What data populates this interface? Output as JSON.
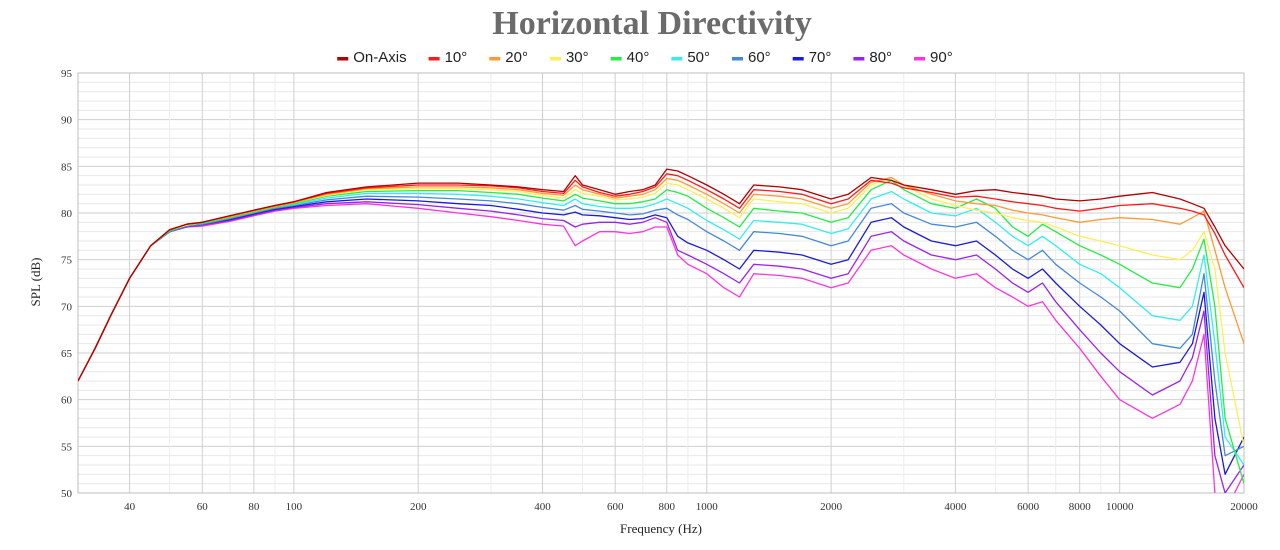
{
  "chart_data": {
    "type": "line",
    "title": "Horizontal Directivity",
    "xlabel": "Frequency (Hz)",
    "ylabel": "SPL (dB)",
    "x_scale": "log",
    "xlim": [
      30,
      20000
    ],
    "ylim": [
      50,
      95
    ],
    "x_ticks": [
      40,
      60,
      80,
      100,
      200,
      400,
      600,
      800,
      1000,
      2000,
      4000,
      6000,
      8000,
      10000,
      20000
    ],
    "y_ticks": [
      50,
      55,
      60,
      65,
      70,
      75,
      80,
      85,
      90,
      95
    ],
    "grid": true,
    "legend_position": "top-center",
    "x": [
      30,
      33,
      36,
      40,
      45,
      50,
      55,
      60,
      70,
      80,
      90,
      100,
      120,
      150,
      200,
      250,
      300,
      350,
      400,
      450,
      480,
      500,
      550,
      600,
      650,
      700,
      750,
      800,
      850,
      900,
      1000,
      1100,
      1200,
      1300,
      1500,
      1700,
      2000,
      2200,
      2500,
      2800,
      3000,
      3500,
      4000,
      4500,
      5000,
      5500,
      6000,
      6500,
      7000,
      8000,
      9000,
      10000,
      12000,
      14000,
      15000,
      16000,
      17000,
      18000,
      20000
    ],
    "series": [
      {
        "name": "On-Axis",
        "color": "#b00000",
        "values": [
          62,
          65.5,
          69,
          73,
          76.5,
          78.2,
          78.8,
          79,
          79.7,
          80.3,
          80.8,
          81.2,
          82.2,
          82.8,
          83.2,
          83.2,
          83,
          82.8,
          82.5,
          82.3,
          84,
          83,
          82.5,
          82,
          82.3,
          82.5,
          83,
          84.7,
          84.5,
          84,
          83,
          82,
          81,
          83,
          82.8,
          82.5,
          81.5,
          82,
          83.8,
          83.5,
          83,
          82.5,
          82,
          82.4,
          82.5,
          82.2,
          82,
          81.8,
          81.5,
          81.3,
          81.5,
          81.8,
          82.2,
          81.5,
          81,
          80.5,
          78.5,
          76.5,
          74
        ]
      },
      {
        "name": "10°",
        "color": "#ff1a1a",
        "values": [
          62,
          65.5,
          69,
          73,
          76.5,
          78.2,
          78.8,
          79,
          79.7,
          80.3,
          80.8,
          81.2,
          82.1,
          82.7,
          83,
          83,
          82.9,
          82.7,
          82.3,
          82.1,
          83.5,
          82.8,
          82.2,
          81.8,
          82,
          82.3,
          82.8,
          84.2,
          84,
          83.5,
          82.5,
          81.5,
          80.5,
          82.5,
          82.3,
          82,
          81,
          81.5,
          83.5,
          83.2,
          82.7,
          82.2,
          81.7,
          81.8,
          81.5,
          81.2,
          81,
          80.8,
          80.5,
          80.2,
          80.5,
          80.8,
          81,
          80.5,
          80.2,
          79.8,
          77.8,
          75.5,
          72
        ]
      },
      {
        "name": "20°",
        "color": "#ff9933",
        "values": [
          62,
          65.5,
          69,
          73,
          76.5,
          78.2,
          78.8,
          79,
          79.6,
          80.2,
          80.7,
          81.1,
          82,
          82.6,
          82.8,
          82.8,
          82.7,
          82.5,
          82.1,
          81.9,
          83,
          82.5,
          82,
          81.6,
          81.8,
          82,
          82.5,
          83.7,
          83.5,
          83,
          82,
          81,
          80,
          82,
          81.8,
          81.5,
          80.5,
          81,
          83.3,
          83.8,
          83,
          82,
          81.3,
          81,
          80.8,
          80.3,
          80,
          79.8,
          79.5,
          79,
          79.3,
          79.5,
          79.3,
          78.8,
          79.5,
          80.2,
          76,
          72,
          66
        ]
      },
      {
        "name": "30°",
        "color": "#ffee55",
        "values": [
          62,
          65.5,
          69,
          73,
          76.5,
          78.2,
          78.7,
          79,
          79.6,
          80.2,
          80.7,
          81.1,
          81.9,
          82.5,
          82.6,
          82.6,
          82.5,
          82.3,
          81.9,
          81.6,
          82.5,
          82.1,
          81.8,
          81.4,
          81.5,
          81.7,
          82.1,
          83.2,
          83,
          82.5,
          81.5,
          80.5,
          79.5,
          81.5,
          81.2,
          81,
          80,
          80.5,
          83,
          83.8,
          83,
          81.5,
          80.8,
          80.3,
          80,
          79.5,
          79.2,
          79,
          78.5,
          77.5,
          77,
          76.5,
          75.5,
          75,
          76,
          78,
          74,
          65,
          55
        ]
      },
      {
        "name": "40°",
        "color": "#22ee44",
        "values": [
          62,
          65.5,
          69,
          73,
          76.5,
          78.1,
          78.7,
          78.9,
          79.5,
          80.1,
          80.6,
          81,
          81.8,
          82.3,
          82.4,
          82.4,
          82.2,
          82,
          81.6,
          81.3,
          82,
          81.6,
          81.3,
          81,
          81,
          81.2,
          81.5,
          82.5,
          82.2,
          81.8,
          80.5,
          79.5,
          78.5,
          80.5,
          80.2,
          80,
          79,
          79.5,
          82.5,
          83.5,
          82.5,
          81,
          80.5,
          81.5,
          80.5,
          78.5,
          77.5,
          78.8,
          78,
          76.5,
          75.5,
          74.5,
          72.5,
          72,
          74,
          77.2,
          70,
          58,
          51
        ]
      },
      {
        "name": "50°",
        "color": "#33eeee",
        "values": [
          62,
          65.5,
          69,
          73,
          76.5,
          78.1,
          78.7,
          78.9,
          79.5,
          80.1,
          80.6,
          80.9,
          81.6,
          82.1,
          82.1,
          82,
          81.8,
          81.5,
          81.1,
          80.8,
          81.5,
          81,
          80.7,
          80.5,
          80.5,
          80.6,
          81,
          81.5,
          81,
          80.5,
          79.2,
          78.2,
          77.2,
          79.2,
          79,
          78.8,
          77.8,
          78.3,
          81.5,
          82.3,
          81.5,
          80,
          79.7,
          80.5,
          79,
          77.5,
          76.5,
          77.5,
          76.5,
          74.5,
          73.5,
          72,
          69,
          68.5,
          70,
          75.5,
          66,
          56,
          53
        ]
      },
      {
        "name": "60°",
        "color": "#4488dd",
        "values": [
          62,
          65.5,
          69,
          73,
          76.5,
          78,
          78.6,
          78.8,
          79.4,
          80,
          80.5,
          80.8,
          81.4,
          81.8,
          81.7,
          81.5,
          81.3,
          81,
          80.6,
          80.3,
          80.8,
          80.4,
          80.2,
          80,
          79.8,
          79.9,
          80.3,
          80.5,
          79.8,
          79.3,
          78,
          77,
          76,
          78,
          77.8,
          77.5,
          76.5,
          77,
          80.5,
          81,
          80,
          78.8,
          78.5,
          79,
          77.5,
          76,
          75,
          76,
          74.5,
          72.5,
          71,
          69.5,
          66,
          65.5,
          67,
          73.5,
          62,
          54,
          55
        ]
      },
      {
        "name": "70°",
        "color": "#1a1add",
        "values": [
          62,
          65.5,
          69,
          73,
          76.5,
          78,
          78.6,
          78.8,
          79.3,
          79.9,
          80.4,
          80.7,
          81.2,
          81.5,
          81.3,
          81,
          80.8,
          80.4,
          80,
          79.8,
          80.1,
          79.8,
          79.7,
          79.5,
          79.3,
          79.4,
          79.8,
          79.5,
          77.5,
          76.8,
          76,
          75,
          74,
          76,
          75.8,
          75.5,
          74.5,
          75,
          79,
          79.5,
          78.5,
          77,
          76.5,
          77,
          75.5,
          74,
          73,
          74,
          72.5,
          70,
          68,
          66,
          63.5,
          64,
          66,
          71.5,
          58,
          52,
          56
        ]
      },
      {
        "name": "80°",
        "color": "#9922ee",
        "values": [
          62,
          65.5,
          69,
          73,
          76.5,
          78,
          78.5,
          78.7,
          79.2,
          79.8,
          80.3,
          80.6,
          81,
          81.2,
          80.9,
          80.5,
          80.2,
          79.8,
          79.4,
          79.2,
          78.5,
          78.8,
          79,
          79,
          78.8,
          79,
          79.5,
          79,
          76,
          75.5,
          74.5,
          73.5,
          72.5,
          74.5,
          74.3,
          74,
          73,
          73.5,
          77.5,
          78,
          77,
          75.5,
          75,
          75.5,
          74,
          72.5,
          71.5,
          72.5,
          70.5,
          67.5,
          65,
          63,
          60.5,
          62,
          64.5,
          69.5,
          54,
          50,
          53
        ]
      },
      {
        "name": "90°",
        "color": "#ff33dd",
        "values": [
          62,
          65.5,
          69,
          73,
          76.5,
          78,
          78.5,
          78.6,
          79.1,
          79.7,
          80.2,
          80.5,
          80.8,
          81,
          80.5,
          80,
          79.6,
          79.2,
          78.8,
          78.6,
          76.5,
          77,
          78,
          78,
          77.8,
          78,
          78.5,
          78.5,
          75.5,
          74.5,
          73.5,
          72,
          71,
          73.5,
          73.3,
          73,
          72,
          72.5,
          76,
          76.5,
          75.5,
          74,
          73,
          73.5,
          72,
          71,
          70,
          70.5,
          68.5,
          65.5,
          62.5,
          60,
          58,
          59.5,
          62,
          67,
          50,
          48,
          52
        ]
      }
    ]
  }
}
